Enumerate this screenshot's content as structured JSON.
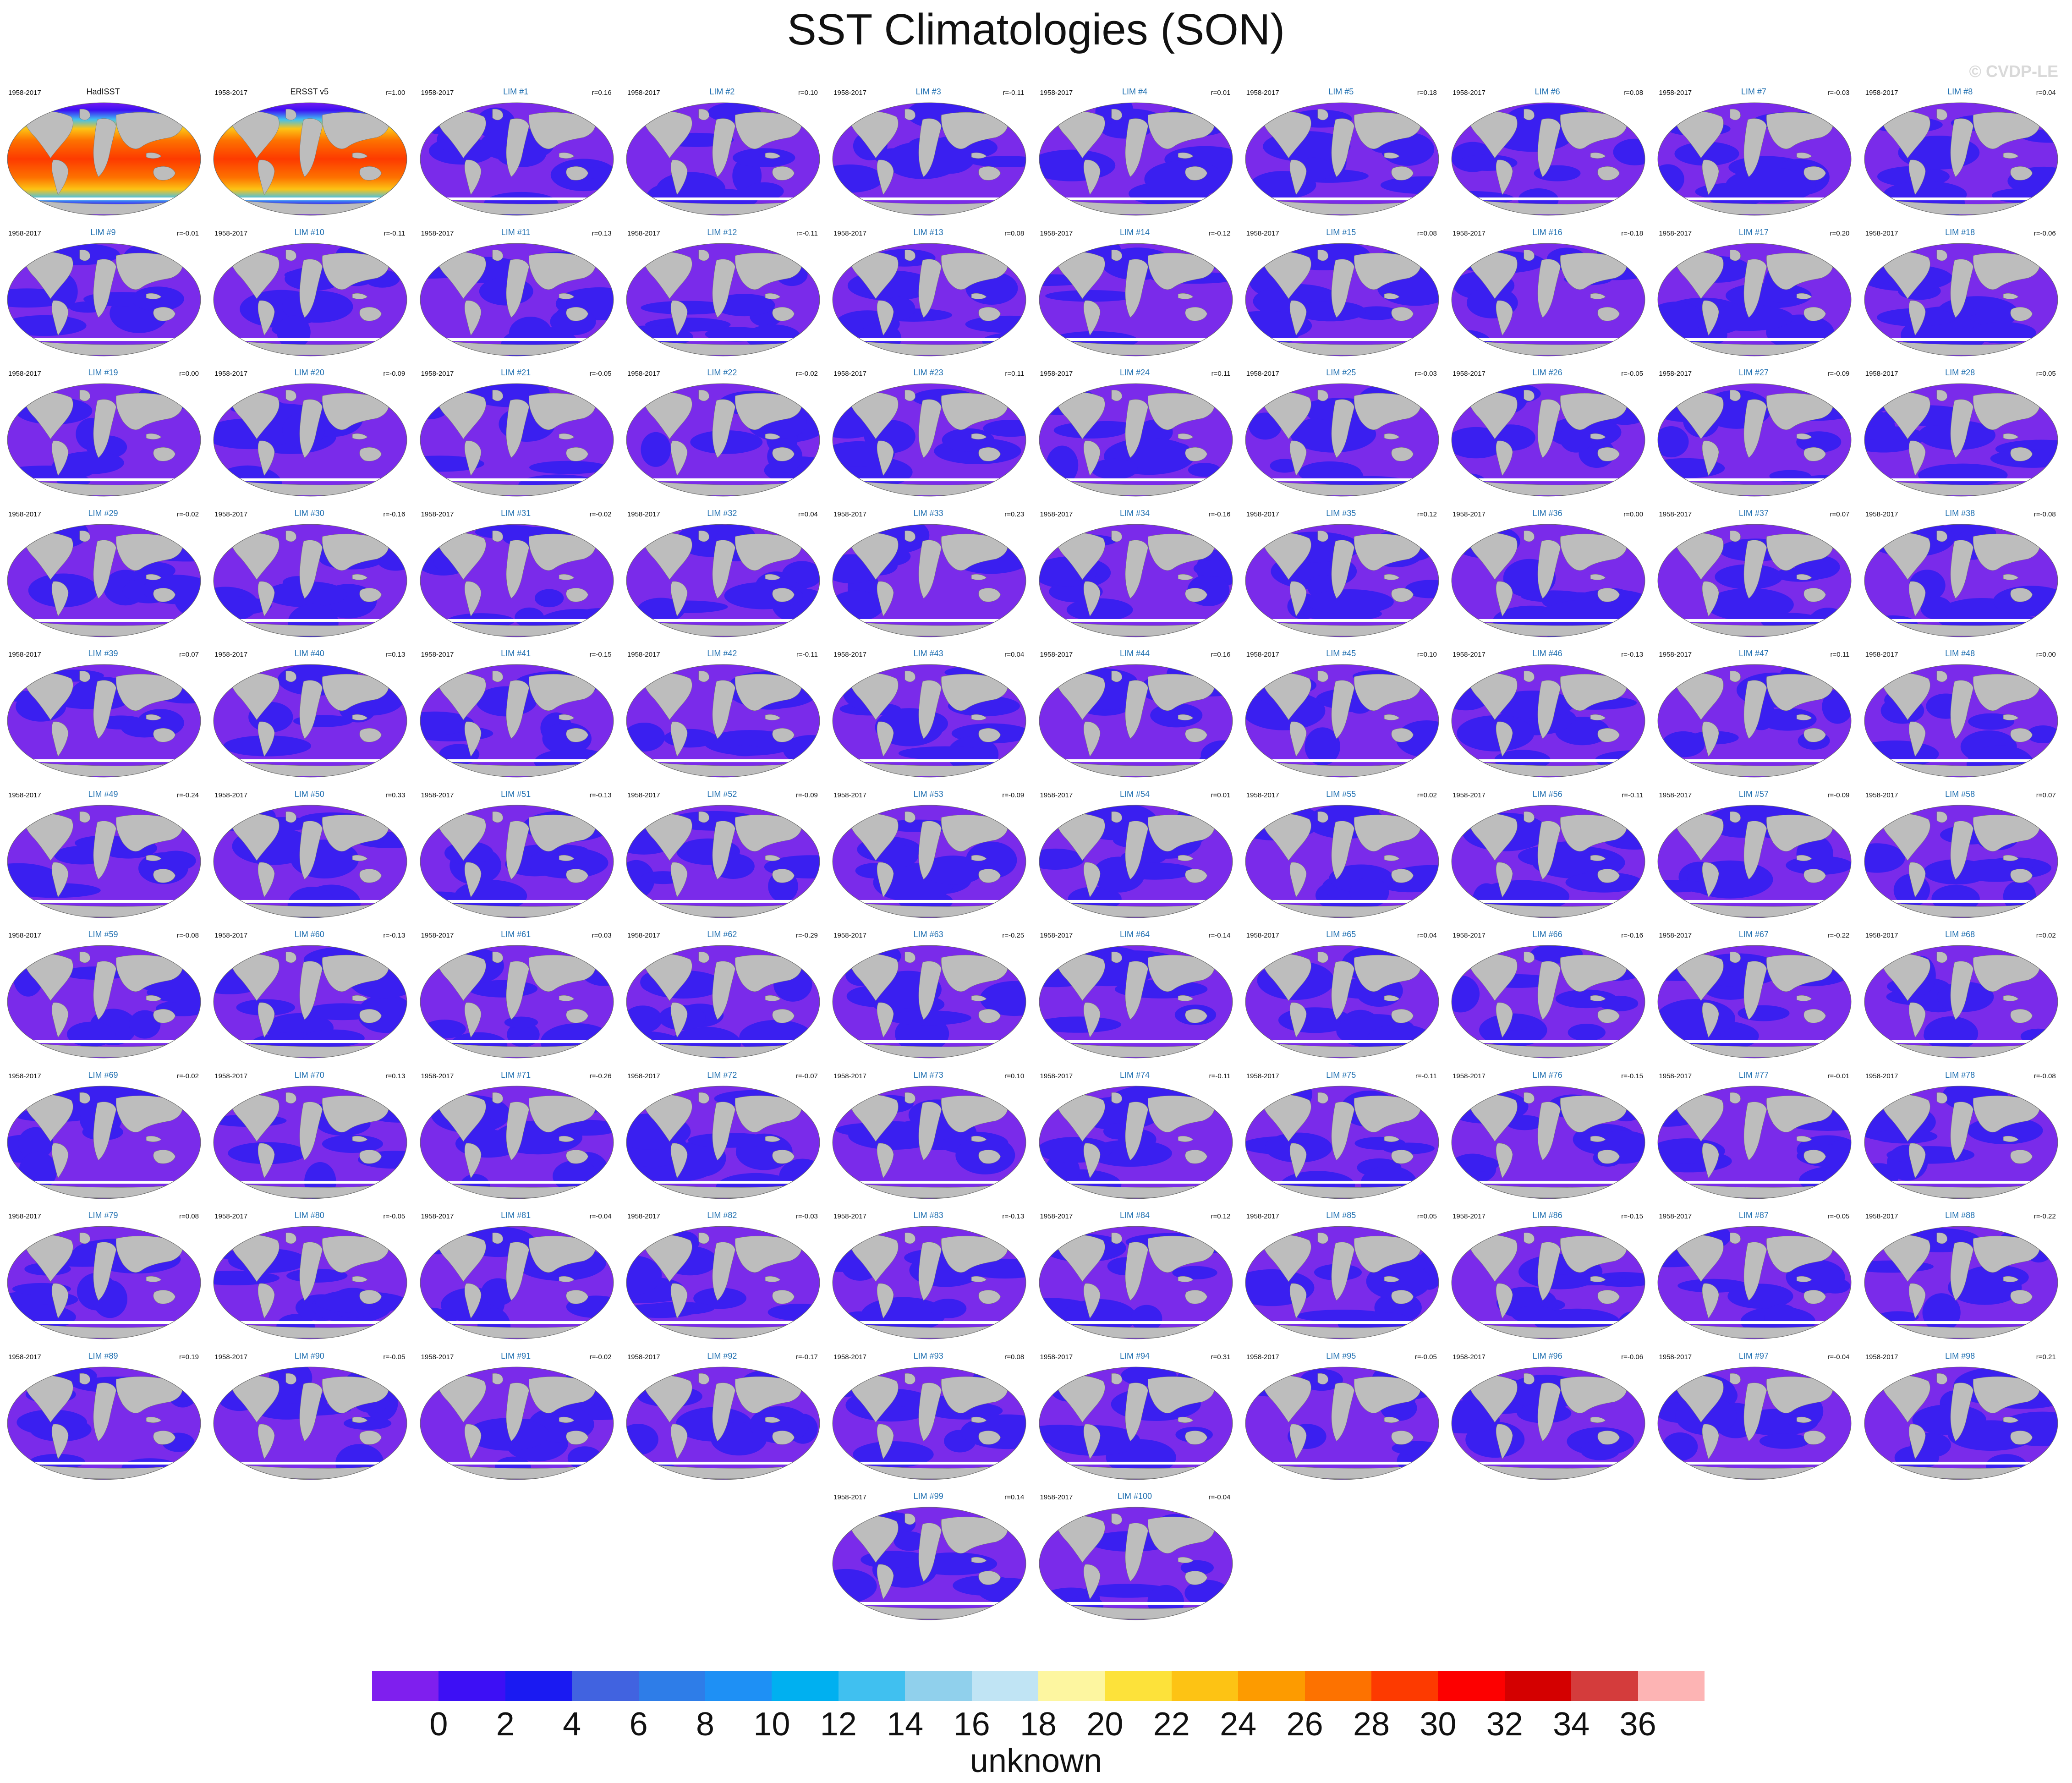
{
  "title": "SST Climatologies (SON)",
  "watermark": "© CVDP-LE",
  "colors": {
    "land": "#bdbdbd",
    "model_ocean_a": "#7a2bea",
    "model_ocean_b": "#3a1ff0",
    "title_blue": "#1f6fb0"
  },
  "panels": [
    {
      "period": "1958-2017",
      "title": "HadISST",
      "corr": "",
      "kind": "obs"
    },
    {
      "period": "1958-2017",
      "title": "ERSST v5",
      "corr": "r=1.00",
      "kind": "obs"
    },
    {
      "period": "1958-2017",
      "title": "LIM #1",
      "corr": "r=0.16",
      "kind": "model"
    },
    {
      "period": "1958-2017",
      "title": "LIM #2",
      "corr": "r=0.10",
      "kind": "model"
    },
    {
      "period": "1958-2017",
      "title": "LIM #3",
      "corr": "r=-0.11",
      "kind": "model"
    },
    {
      "period": "1958-2017",
      "title": "LIM #4",
      "corr": "r=0.01",
      "kind": "model"
    },
    {
      "period": "1958-2017",
      "title": "LIM #5",
      "corr": "r=0.18",
      "kind": "model"
    },
    {
      "period": "1958-2017",
      "title": "LIM #6",
      "corr": "r=0.08",
      "kind": "model"
    },
    {
      "period": "1958-2017",
      "title": "LIM #7",
      "corr": "r=-0.03",
      "kind": "model"
    },
    {
      "period": "1958-2017",
      "title": "LIM #8",
      "corr": "r=0.04",
      "kind": "model"
    },
    {
      "period": "1958-2017",
      "title": "LIM #9",
      "corr": "r=-0.01",
      "kind": "model"
    },
    {
      "period": "1958-2017",
      "title": "LIM #10",
      "corr": "r=-0.11",
      "kind": "model"
    },
    {
      "period": "1958-2017",
      "title": "LIM #11",
      "corr": "r=0.13",
      "kind": "model"
    },
    {
      "period": "1958-2017",
      "title": "LIM #12",
      "corr": "r=-0.11",
      "kind": "model"
    },
    {
      "period": "1958-2017",
      "title": "LIM #13",
      "corr": "r=0.08",
      "kind": "model"
    },
    {
      "period": "1958-2017",
      "title": "LIM #14",
      "corr": "r=-0.12",
      "kind": "model"
    },
    {
      "period": "1958-2017",
      "title": "LIM #15",
      "corr": "r=0.08",
      "kind": "model"
    },
    {
      "period": "1958-2017",
      "title": "LIM #16",
      "corr": "r=-0.18",
      "kind": "model"
    },
    {
      "period": "1958-2017",
      "title": "LIM #17",
      "corr": "r=0.20",
      "kind": "model"
    },
    {
      "period": "1958-2017",
      "title": "LIM #18",
      "corr": "r=-0.06",
      "kind": "model"
    },
    {
      "period": "1958-2017",
      "title": "LIM #19",
      "corr": "r=0.00",
      "kind": "model"
    },
    {
      "period": "1958-2017",
      "title": "LIM #20",
      "corr": "r=-0.09",
      "kind": "model"
    },
    {
      "period": "1958-2017",
      "title": "LIM #21",
      "corr": "r=-0.05",
      "kind": "model"
    },
    {
      "period": "1958-2017",
      "title": "LIM #22",
      "corr": "r=-0.02",
      "kind": "model"
    },
    {
      "period": "1958-2017",
      "title": "LIM #23",
      "corr": "r=0.11",
      "kind": "model"
    },
    {
      "period": "1958-2017",
      "title": "LIM #24",
      "corr": "r=0.11",
      "kind": "model"
    },
    {
      "period": "1958-2017",
      "title": "LIM #25",
      "corr": "r=-0.03",
      "kind": "model"
    },
    {
      "period": "1958-2017",
      "title": "LIM #26",
      "corr": "r=-0.05",
      "kind": "model"
    },
    {
      "period": "1958-2017",
      "title": "LIM #27",
      "corr": "r=-0.09",
      "kind": "model"
    },
    {
      "period": "1958-2017",
      "title": "LIM #28",
      "corr": "r=0.05",
      "kind": "model"
    },
    {
      "period": "1958-2017",
      "title": "LIM #29",
      "corr": "r=-0.02",
      "kind": "model"
    },
    {
      "period": "1958-2017",
      "title": "LIM #30",
      "corr": "r=-0.16",
      "kind": "model"
    },
    {
      "period": "1958-2017",
      "title": "LIM #31",
      "corr": "r=-0.02",
      "kind": "model"
    },
    {
      "period": "1958-2017",
      "title": "LIM #32",
      "corr": "r=0.04",
      "kind": "model"
    },
    {
      "period": "1958-2017",
      "title": "LIM #33",
      "corr": "r=0.23",
      "kind": "model"
    },
    {
      "period": "1958-2017",
      "title": "LIM #34",
      "corr": "r=-0.16",
      "kind": "model"
    },
    {
      "period": "1958-2017",
      "title": "LIM #35",
      "corr": "r=0.12",
      "kind": "model"
    },
    {
      "period": "1958-2017",
      "title": "LIM #36",
      "corr": "r=0.00",
      "kind": "model"
    },
    {
      "period": "1958-2017",
      "title": "LIM #37",
      "corr": "r=0.07",
      "kind": "model"
    },
    {
      "period": "1958-2017",
      "title": "LIM #38",
      "corr": "r=-0.08",
      "kind": "model"
    },
    {
      "period": "1958-2017",
      "title": "LIM #39",
      "corr": "r=0.07",
      "kind": "model"
    },
    {
      "period": "1958-2017",
      "title": "LIM #40",
      "corr": "r=0.13",
      "kind": "model"
    },
    {
      "period": "1958-2017",
      "title": "LIM #41",
      "corr": "r=-0.15",
      "kind": "model"
    },
    {
      "period": "1958-2017",
      "title": "LIM #42",
      "corr": "r=-0.11",
      "kind": "model"
    },
    {
      "period": "1958-2017",
      "title": "LIM #43",
      "corr": "r=0.04",
      "kind": "model"
    },
    {
      "period": "1958-2017",
      "title": "LIM #44",
      "corr": "r=0.16",
      "kind": "model"
    },
    {
      "period": "1958-2017",
      "title": "LIM #45",
      "corr": "r=0.10",
      "kind": "model"
    },
    {
      "period": "1958-2017",
      "title": "LIM #46",
      "corr": "r=-0.13",
      "kind": "model"
    },
    {
      "period": "1958-2017",
      "title": "LIM #47",
      "corr": "r=0.11",
      "kind": "model"
    },
    {
      "period": "1958-2017",
      "title": "LIM #48",
      "corr": "r=0.00",
      "kind": "model"
    },
    {
      "period": "1958-2017",
      "title": "LIM #49",
      "corr": "r=-0.24",
      "kind": "model"
    },
    {
      "period": "1958-2017",
      "title": "LIM #50",
      "corr": "r=0.33",
      "kind": "model"
    },
    {
      "period": "1958-2017",
      "title": "LIM #51",
      "corr": "r=-0.13",
      "kind": "model"
    },
    {
      "period": "1958-2017",
      "title": "LIM #52",
      "corr": "r=-0.09",
      "kind": "model"
    },
    {
      "period": "1958-2017",
      "title": "LIM #53",
      "corr": "r=-0.09",
      "kind": "model"
    },
    {
      "period": "1958-2017",
      "title": "LIM #54",
      "corr": "r=0.01",
      "kind": "model"
    },
    {
      "period": "1958-2017",
      "title": "LIM #55",
      "corr": "r=0.02",
      "kind": "model"
    },
    {
      "period": "1958-2017",
      "title": "LIM #56",
      "corr": "r=-0.11",
      "kind": "model"
    },
    {
      "period": "1958-2017",
      "title": "LIM #57",
      "corr": "r=-0.09",
      "kind": "model"
    },
    {
      "period": "1958-2017",
      "title": "LIM #58",
      "corr": "r=0.07",
      "kind": "model"
    },
    {
      "period": "1958-2017",
      "title": "LIM #59",
      "corr": "r=-0.08",
      "kind": "model"
    },
    {
      "period": "1958-2017",
      "title": "LIM #60",
      "corr": "r=-0.13",
      "kind": "model"
    },
    {
      "period": "1958-2017",
      "title": "LIM #61",
      "corr": "r=0.03",
      "kind": "model"
    },
    {
      "period": "1958-2017",
      "title": "LIM #62",
      "corr": "r=-0.29",
      "kind": "model"
    },
    {
      "period": "1958-2017",
      "title": "LIM #63",
      "corr": "r=-0.25",
      "kind": "model"
    },
    {
      "period": "1958-2017",
      "title": "LIM #64",
      "corr": "r=-0.14",
      "kind": "model"
    },
    {
      "period": "1958-2017",
      "title": "LIM #65",
      "corr": "r=0.04",
      "kind": "model"
    },
    {
      "period": "1958-2017",
      "title": "LIM #66",
      "corr": "r=-0.16",
      "kind": "model"
    },
    {
      "period": "1958-2017",
      "title": "LIM #67",
      "corr": "r=-0.22",
      "kind": "model"
    },
    {
      "period": "1958-2017",
      "title": "LIM #68",
      "corr": "r=0.02",
      "kind": "model"
    },
    {
      "period": "1958-2017",
      "title": "LIM #69",
      "corr": "r=-0.02",
      "kind": "model"
    },
    {
      "period": "1958-2017",
      "title": "LIM #70",
      "corr": "r=0.13",
      "kind": "model"
    },
    {
      "period": "1958-2017",
      "title": "LIM #71",
      "corr": "r=-0.26",
      "kind": "model"
    },
    {
      "period": "1958-2017",
      "title": "LIM #72",
      "corr": "r=-0.07",
      "kind": "model"
    },
    {
      "period": "1958-2017",
      "title": "LIM #73",
      "corr": "r=0.10",
      "kind": "model"
    },
    {
      "period": "1958-2017",
      "title": "LIM #74",
      "corr": "r=-0.11",
      "kind": "model"
    },
    {
      "period": "1958-2017",
      "title": "LIM #75",
      "corr": "r=-0.11",
      "kind": "model"
    },
    {
      "period": "1958-2017",
      "title": "LIM #76",
      "corr": "r=-0.15",
      "kind": "model"
    },
    {
      "period": "1958-2017",
      "title": "LIM #77",
      "corr": "r=-0.01",
      "kind": "model"
    },
    {
      "period": "1958-2017",
      "title": "LIM #78",
      "corr": "r=-0.08",
      "kind": "model"
    },
    {
      "period": "1958-2017",
      "title": "LIM #79",
      "corr": "r=0.08",
      "kind": "model"
    },
    {
      "period": "1958-2017",
      "title": "LIM #80",
      "corr": "r=-0.05",
      "kind": "model"
    },
    {
      "period": "1958-2017",
      "title": "LIM #81",
      "corr": "r=-0.04",
      "kind": "model"
    },
    {
      "period": "1958-2017",
      "title": "LIM #82",
      "corr": "r=-0.03",
      "kind": "model"
    },
    {
      "period": "1958-2017",
      "title": "LIM #83",
      "corr": "r=-0.13",
      "kind": "model"
    },
    {
      "period": "1958-2017",
      "title": "LIM #84",
      "corr": "r=0.12",
      "kind": "model"
    },
    {
      "period": "1958-2017",
      "title": "LIM #85",
      "corr": "r=0.05",
      "kind": "model"
    },
    {
      "period": "1958-2017",
      "title": "LIM #86",
      "corr": "r=-0.15",
      "kind": "model"
    },
    {
      "period": "1958-2017",
      "title": "LIM #87",
      "corr": "r=-0.05",
      "kind": "model"
    },
    {
      "period": "1958-2017",
      "title": "LIM #88",
      "corr": "r=-0.22",
      "kind": "model"
    },
    {
      "period": "1958-2017",
      "title": "LIM #89",
      "corr": "r=0.19",
      "kind": "model"
    },
    {
      "period": "1958-2017",
      "title": "LIM #90",
      "corr": "r=-0.05",
      "kind": "model"
    },
    {
      "period": "1958-2017",
      "title": "LIM #91",
      "corr": "r=-0.02",
      "kind": "model"
    },
    {
      "period": "1958-2017",
      "title": "LIM #92",
      "corr": "r=-0.17",
      "kind": "model"
    },
    {
      "period": "1958-2017",
      "title": "LIM #93",
      "corr": "r=0.08",
      "kind": "model"
    },
    {
      "period": "1958-2017",
      "title": "LIM #94",
      "corr": "r=0.31",
      "kind": "model"
    },
    {
      "period": "1958-2017",
      "title": "LIM #95",
      "corr": "r=-0.05",
      "kind": "model"
    },
    {
      "period": "1958-2017",
      "title": "LIM #96",
      "corr": "r=-0.06",
      "kind": "model"
    },
    {
      "period": "1958-2017",
      "title": "LIM #97",
      "corr": "r=-0.04",
      "kind": "model"
    },
    {
      "period": "1958-2017",
      "title": "LIM #98",
      "corr": "r=0.21",
      "kind": "model"
    },
    {
      "period": "1958-2017",
      "title": "LIM #99",
      "corr": "r=0.14",
      "kind": "model"
    },
    {
      "period": "1958-2017",
      "title": "LIM #100",
      "corr": "r=-0.04",
      "kind": "model"
    }
  ],
  "colorbar": {
    "colors": [
      "#7f1fee",
      "#3d0ff5",
      "#1a1af2",
      "#4163e0",
      "#2e7de8",
      "#1e90f5",
      "#00b0f0",
      "#40c0f0",
      "#90d0ec",
      "#c0e4f4",
      "#fdf6a0",
      "#fde23a",
      "#fdc314",
      "#fd9b00",
      "#fd7200",
      "#fd3a00",
      "#fd0000",
      "#d40000",
      "#d43c3c",
      "#fdb4b4"
    ],
    "labels": [
      "0",
      "2",
      "4",
      "6",
      "8",
      "10",
      "12",
      "14",
      "16",
      "18",
      "20",
      "22",
      "24",
      "26",
      "28",
      "30",
      "32",
      "34",
      "36"
    ],
    "units": "unknown"
  }
}
